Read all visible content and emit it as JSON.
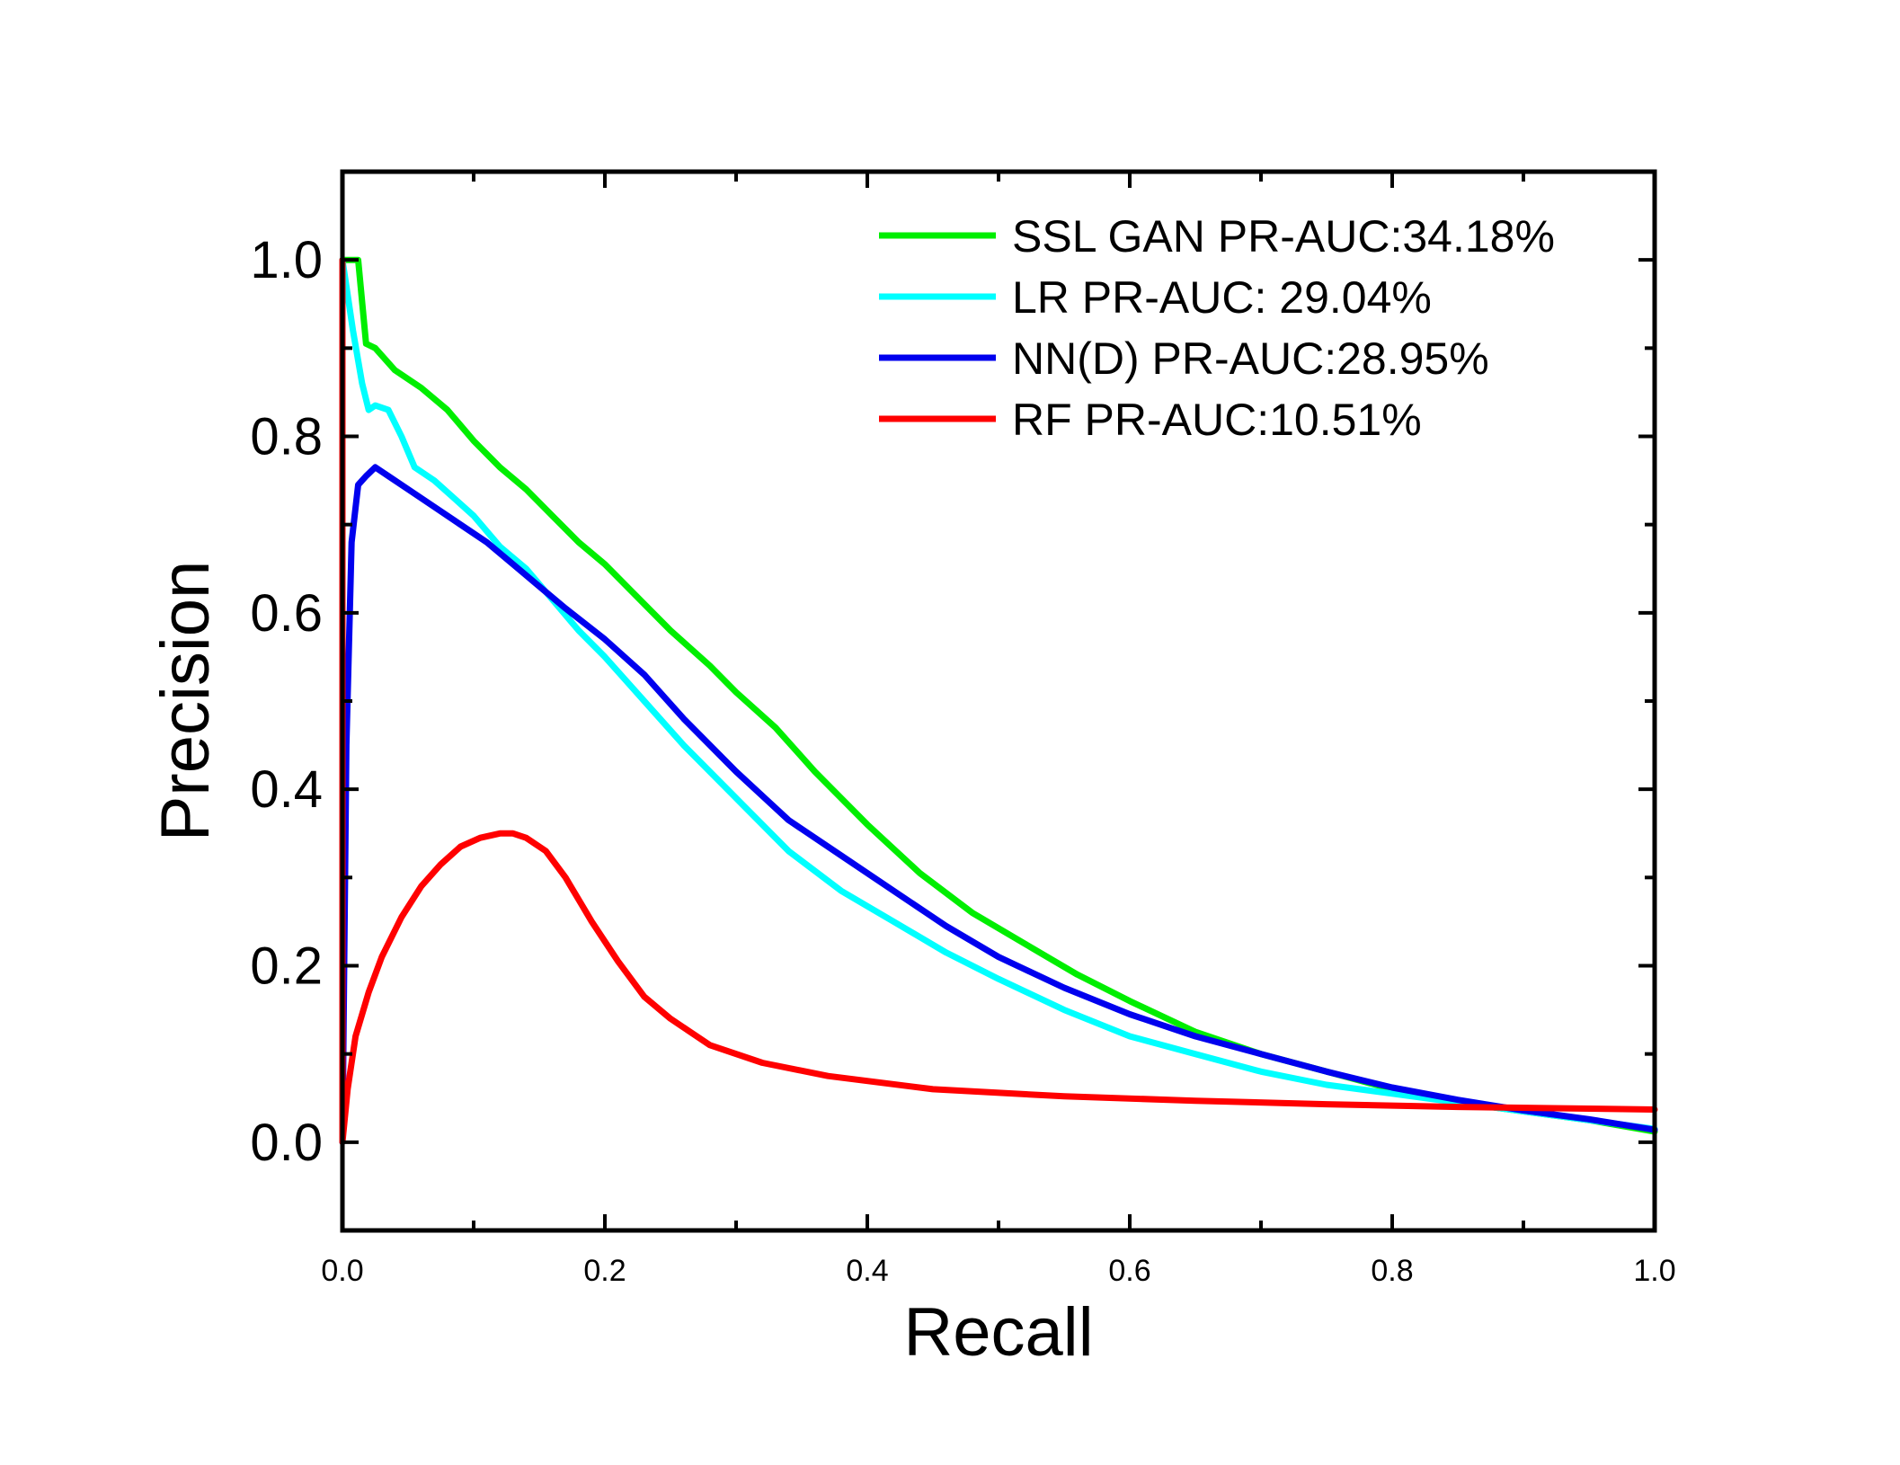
{
  "chart_data": {
    "type": "line",
    "title": "",
    "xlabel": "Recall",
    "ylabel": "Precision",
    "xlim": [
      0.0,
      1.0
    ],
    "ylim": [
      -0.1,
      1.1
    ],
    "x_ticks": [
      "0.0",
      "0.2",
      "0.4",
      "0.6",
      "0.8",
      "1.0"
    ],
    "y_ticks": [
      "0.0",
      "0.2",
      "0.4",
      "0.6",
      "0.8",
      "1.0"
    ],
    "grid": false,
    "legend_position": "top-right",
    "series": [
      {
        "name": "SSL GAN PR-AUC:34.18%",
        "color": "#00ee00",
        "x": [
          0.0,
          0.005,
          0.012,
          0.018,
          0.025,
          0.04,
          0.06,
          0.08,
          0.1,
          0.12,
          0.14,
          0.16,
          0.18,
          0.2,
          0.22,
          0.25,
          0.28,
          0.3,
          0.33,
          0.36,
          0.4,
          0.44,
          0.48,
          0.52,
          0.56,
          0.6,
          0.65,
          0.7,
          0.75,
          0.8,
          0.85,
          0.9,
          0.95,
          1.0
        ],
        "y": [
          1.0,
          1.0,
          1.0,
          0.905,
          0.9,
          0.875,
          0.855,
          0.83,
          0.795,
          0.765,
          0.74,
          0.71,
          0.68,
          0.655,
          0.625,
          0.58,
          0.54,
          0.51,
          0.47,
          0.42,
          0.36,
          0.305,
          0.26,
          0.225,
          0.19,
          0.16,
          0.125,
          0.1,
          0.08,
          0.06,
          0.045,
          0.035,
          0.025,
          0.012
        ]
      },
      {
        "name": "LR PR-AUC: 29.04%",
        "color": "#00ffff",
        "x": [
          0.0,
          0.003,
          0.008,
          0.015,
          0.02,
          0.025,
          0.035,
          0.045,
          0.055,
          0.07,
          0.085,
          0.1,
          0.12,
          0.14,
          0.16,
          0.18,
          0.2,
          0.23,
          0.26,
          0.3,
          0.34,
          0.38,
          0.42,
          0.46,
          0.5,
          0.55,
          0.6,
          0.65,
          0.7,
          0.75,
          0.8,
          0.85,
          0.9,
          0.95,
          1.0
        ],
        "y": [
          1.0,
          0.97,
          0.92,
          0.86,
          0.83,
          0.835,
          0.83,
          0.8,
          0.765,
          0.75,
          0.73,
          0.71,
          0.675,
          0.65,
          0.615,
          0.58,
          0.55,
          0.5,
          0.45,
          0.39,
          0.33,
          0.285,
          0.25,
          0.215,
          0.185,
          0.15,
          0.12,
          0.1,
          0.08,
          0.065,
          0.055,
          0.045,
          0.035,
          0.025,
          0.015
        ]
      },
      {
        "name": "NN(D) PR-AUC:28.95%",
        "color": "#0000ee",
        "x": [
          0.0,
          0.003,
          0.007,
          0.012,
          0.018,
          0.025,
          0.035,
          0.05,
          0.07,
          0.09,
          0.11,
          0.13,
          0.15,
          0.17,
          0.2,
          0.23,
          0.26,
          0.3,
          0.34,
          0.38,
          0.42,
          0.46,
          0.5,
          0.55,
          0.6,
          0.65,
          0.7,
          0.75,
          0.8,
          0.85,
          0.9,
          0.95,
          1.0
        ],
        "y": [
          0.0,
          0.45,
          0.68,
          0.745,
          0.755,
          0.765,
          0.755,
          0.74,
          0.72,
          0.7,
          0.68,
          0.655,
          0.63,
          0.605,
          0.57,
          0.53,
          0.48,
          0.42,
          0.365,
          0.325,
          0.285,
          0.245,
          0.21,
          0.175,
          0.145,
          0.12,
          0.1,
          0.08,
          0.062,
          0.048,
          0.036,
          0.026,
          0.014
        ]
      },
      {
        "name": "RF PR-AUC:10.51%",
        "color": "#ff0000",
        "x": [
          0.0,
          0.0,
          0.004,
          0.01,
          0.02,
          0.03,
          0.045,
          0.06,
          0.075,
          0.09,
          0.105,
          0.12,
          0.13,
          0.14,
          0.155,
          0.17,
          0.19,
          0.21,
          0.23,
          0.25,
          0.28,
          0.32,
          0.37,
          0.45,
          0.55,
          0.65,
          0.75,
          0.85,
          0.95,
          1.0
        ],
        "y": [
          1.0,
          0.0,
          0.06,
          0.12,
          0.17,
          0.21,
          0.255,
          0.29,
          0.315,
          0.335,
          0.345,
          0.35,
          0.35,
          0.345,
          0.33,
          0.3,
          0.25,
          0.205,
          0.165,
          0.14,
          0.11,
          0.09,
          0.075,
          0.06,
          0.052,
          0.047,
          0.043,
          0.04,
          0.038,
          0.037
        ]
      }
    ]
  }
}
